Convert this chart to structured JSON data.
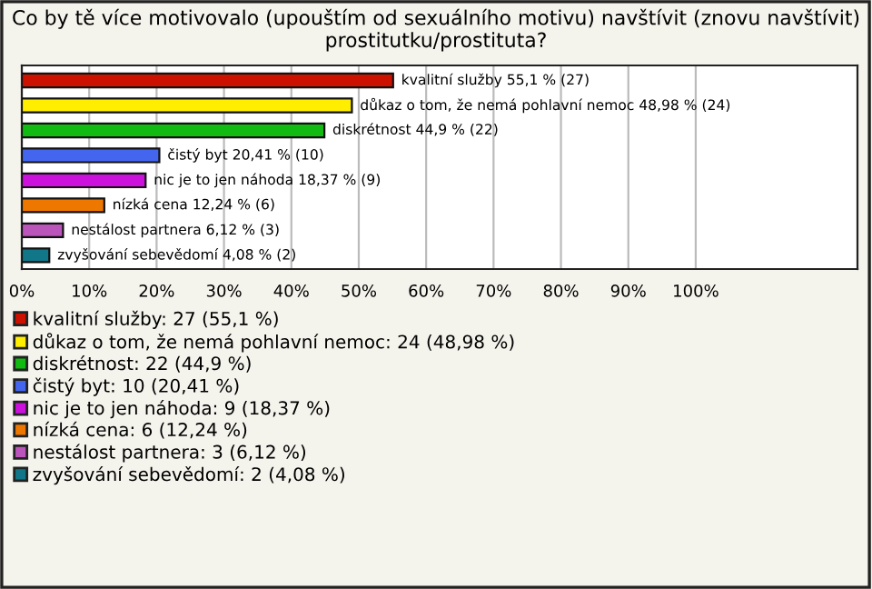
{
  "chart_data": {
    "type": "bar",
    "orientation": "horizontal",
    "title": "Co by tě více motivovalo (upouštím od sexuálního motivu) navštívit (znovu navštívit) prostitutku/prostituta?",
    "categories": [
      "kvalitní služby",
      "důkaz o tom, že nemá pohlavní nemoc",
      "diskrétnost",
      "čistý byt",
      "nic je to jen náhoda",
      "nízká cena",
      "nestálost partnera",
      "zvyšování sebevědomí"
    ],
    "series": [
      {
        "name": "kvalitní služby: 27 (55,1 %)",
        "color": "#cc1100",
        "values": [
          55.1,
          null,
          null,
          null,
          null,
          null,
          null,
          null
        ],
        "value_labels": [
          "55,1 % (27)",
          null,
          null,
          null,
          null,
          null,
          null,
          null
        ]
      },
      {
        "name": "důkaz o tom, že nemá pohlavní nemoc: 24 (48,98 %)",
        "color": "#ffee00",
        "values": [
          null,
          48.98,
          null,
          null,
          null,
          null,
          null,
          null
        ],
        "value_labels": [
          null,
          "48,98 % (24)",
          null,
          null,
          null,
          null,
          null,
          null
        ]
      },
      {
        "name": "diskrétnost: 22 (44,9 %)",
        "color": "#11bb11",
        "values": [
          null,
          null,
          44.9,
          null,
          null,
          null,
          null,
          null
        ],
        "value_labels": [
          null,
          null,
          "44,9 % (22)",
          null,
          null,
          null,
          null,
          null
        ]
      },
      {
        "name": "čistý byt: 10 (20,41 %)",
        "color": "#4466ee",
        "values": [
          null,
          null,
          null,
          20.41,
          null,
          null,
          null,
          null
        ],
        "value_labels": [
          null,
          null,
          null,
          "20,41 % (10)",
          null,
          null,
          null,
          null
        ]
      },
      {
        "name": "nic je to jen náhoda: 9 (18,37 %)",
        "color": "#cc11dd",
        "values": [
          null,
          null,
          null,
          null,
          18.37,
          null,
          null,
          null
        ],
        "value_labels": [
          null,
          null,
          null,
          null,
          "18,37 % (9)",
          null,
          null,
          null
        ]
      },
      {
        "name": "nízká cena: 6 (12,24 %)",
        "color": "#ee7700",
        "values": [
          null,
          null,
          null,
          null,
          null,
          12.24,
          null,
          null
        ],
        "value_labels": [
          null,
          null,
          null,
          null,
          null,
          "12,24 % (6)",
          null,
          null
        ]
      },
      {
        "name": "nestálost partnera: 3 (6,12 %)",
        "color": "#bb55bb",
        "values": [
          null,
          null,
          null,
          null,
          null,
          null,
          6.12,
          null
        ],
        "value_labels": [
          null,
          null,
          null,
          null,
          null,
          null,
          "6,12 % (3)",
          null
        ]
      },
      {
        "name": "zvyšování sebevědomí: 2 (4,08 %)",
        "color": "#117788",
        "values": [
          null,
          null,
          null,
          null,
          null,
          null,
          null,
          4.08
        ],
        "value_labels": [
          null,
          null,
          null,
          null,
          null,
          null,
          null,
          "4,08 % (2)"
        ]
      }
    ],
    "xlim": [
      0,
      124
    ],
    "xticks": [
      {
        "value": 0,
        "label": "0%"
      },
      {
        "value": 10,
        "label": "10%"
      },
      {
        "value": 20,
        "label": "20%"
      },
      {
        "value": 30,
        "label": "30%"
      },
      {
        "value": 40,
        "label": "40%"
      },
      {
        "value": 50,
        "label": "50%"
      },
      {
        "value": 60,
        "label": "60%"
      },
      {
        "value": 70,
        "label": "70%"
      },
      {
        "value": 80,
        "label": "80%"
      },
      {
        "value": 90,
        "label": "90%"
      },
      {
        "value": 100,
        "label": "100%"
      }
    ],
    "grid": "x",
    "legend": "bottom"
  }
}
